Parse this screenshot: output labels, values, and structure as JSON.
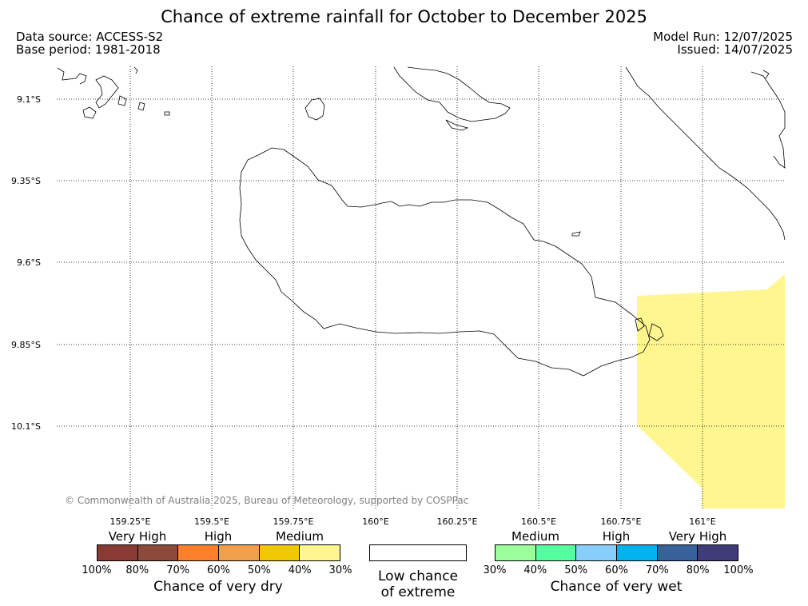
{
  "header": {
    "title": "Chance of extreme rainfall for October to December 2025",
    "data_source": "Data source: ACCESS-S2",
    "base_period": "Base period: 1981-2018",
    "model_run": "Model Run: 12/07/2025",
    "issued": "Issued: 14/07/2025"
  },
  "map": {
    "lat_ticks": [
      "9.1°S",
      "9.35°S",
      "9.6°S",
      "9.85°S",
      "10.1°S"
    ],
    "lon_ticks": [
      "159.25°E",
      "159.5°E",
      "159.75°E",
      "160°E",
      "160.25°E",
      "160.5°E",
      "160.75°E",
      "161°E"
    ],
    "copyright": "© Commonwealth of Australia 2025, Bureau of Meteorology, supported by COSPPac",
    "shaded_region_category": "Medium (30%-40%) chance of very dry",
    "shaded_color": "#fff68f"
  },
  "legend": {
    "dry": {
      "categories": [
        "Very High",
        "High",
        "Medium"
      ],
      "colors": [
        "#8b3a33",
        "#8b4a3a",
        "#ff7f2a",
        "#f0a04a",
        "#f0c800",
        "#fff68f"
      ],
      "ticks": [
        "100%",
        "80%",
        "70%",
        "60%",
        "50%",
        "40%",
        "30%"
      ],
      "title": "Chance of very dry"
    },
    "low": {
      "line1": "Low chance",
      "line2": "of extreme"
    },
    "wet": {
      "categories": [
        "Medium",
        "High",
        "Very High"
      ],
      "colors": [
        "#9aff9a",
        "#54ffa0",
        "#87cefa",
        "#00b2ee",
        "#36619a",
        "#3f3c79"
      ],
      "ticks": [
        "30%",
        "40%",
        "50%",
        "60%",
        "70%",
        "80%",
        "100%"
      ],
      "title": "Chance of very wet"
    }
  }
}
